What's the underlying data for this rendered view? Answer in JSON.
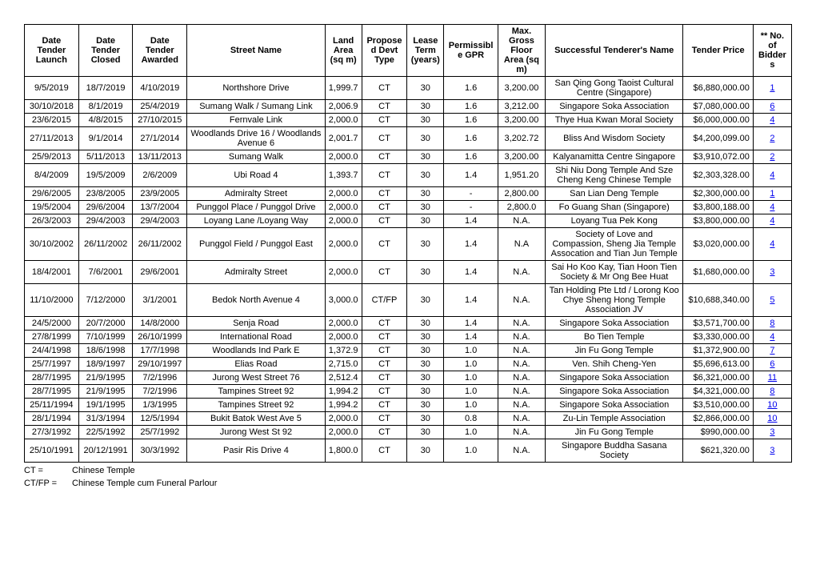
{
  "headers": {
    "launch": "Date Tender Launch",
    "closed": "Date Tender Closed",
    "awarded": "Date Tender Awarded",
    "street": "Street Name",
    "land": "Land Area (sq m)",
    "devt": "Proposed Devt Type",
    "lease": "Lease Term (years)",
    "gpr": "Permissible GPR",
    "gfa": "Max. Gross Floor Area (sq m)",
    "tenderer": "Successful Tenderer's Name",
    "price": "Tender Price",
    "bidders": "** No. of Bidders"
  },
  "rows": [
    {
      "launch": "9/5/2019",
      "closed": "18/7/2019",
      "awarded": "4/10/2019",
      "street": "Northshore Drive",
      "land": "1,999.7",
      "devt": "CT",
      "lease": "30",
      "gpr": "1.6",
      "gfa": "3,200.00",
      "tenderer": "San Qing Gong Taoist Cultural Centre (Singapore)",
      "price": "$6,880,000.00",
      "bidders": "1"
    },
    {
      "launch": "30/10/2018",
      "closed": "8/1/2019",
      "awarded": "25/4/2019",
      "street": "Sumang Walk / Sumang Link",
      "land": "2,006.9",
      "devt": "CT",
      "lease": "30",
      "gpr": "1.6",
      "gfa": "3,212.00",
      "tenderer": "Singapore Soka Association",
      "price": "$7,080,000.00",
      "bidders": "6"
    },
    {
      "launch": "23/6/2015",
      "closed": "4/8/2015",
      "awarded": "27/10/2015",
      "street": "Fernvale Link",
      "land": "2,000.0",
      "devt": "CT",
      "lease": "30",
      "gpr": "1.6",
      "gfa": "3,200.00",
      "tenderer": "Thye Hua Kwan Moral Society",
      "price": "$6,000,000.00",
      "bidders": "4"
    },
    {
      "launch": "27/11/2013",
      "closed": "9/1/2014",
      "awarded": "27/1/2014",
      "street": "Woodlands Drive 16 / Woodlands Avenue 6",
      "land": "2,001.7",
      "devt": "CT",
      "lease": "30",
      "gpr": "1.6",
      "gfa": "3,202.72",
      "tenderer": "Bliss And Wisdom Society",
      "price": "$4,200,099.00",
      "bidders": "2"
    },
    {
      "launch": "25/9/2013",
      "closed": "5/11/2013",
      "awarded": "13/11/2013",
      "street": "Sumang Walk",
      "land": "2,000.0",
      "devt": "CT",
      "lease": "30",
      "gpr": "1.6",
      "gfa": "3,200.00",
      "tenderer": "Kalyanamitta Centre Singapore",
      "price": "$3,910,072.00",
      "bidders": "2"
    },
    {
      "launch": "8/4/2009",
      "closed": "19/5/2009",
      "awarded": "2/6/2009",
      "street": "Ubi Road 4",
      "land": "1,393.7",
      "devt": "CT",
      "lease": "30",
      "gpr": "1.4",
      "gfa": "1,951.20",
      "tenderer": "Shi Niu Dong Temple And Sze Cheng Keng Chinese Temple",
      "price": "$2,303,328.00",
      "bidders": "4"
    },
    {
      "launch": "29/6/2005",
      "closed": "23/8/2005",
      "awarded": "23/9/2005",
      "street": "Admiralty Street",
      "land": "2,000.0",
      "devt": "CT",
      "lease": "30",
      "gpr": "-",
      "gfa": "2,800.00",
      "tenderer": "San Lian Deng Temple",
      "price": "$2,300,000.00",
      "bidders": "1"
    },
    {
      "launch": "19/5/2004",
      "closed": "29/6/2004",
      "awarded": "13/7/2004",
      "street": "Punggol Place / Punggol Drive",
      "land": "2,000.0",
      "devt": "CT",
      "lease": "30",
      "gpr": "-",
      "gfa": "2,800.0",
      "tenderer": "Fo Guang Shan (Singapore)",
      "price": "$3,800,188.00",
      "bidders": "4"
    },
    {
      "launch": "26/3/2003",
      "closed": "29/4/2003",
      "awarded": "29/4/2003",
      "street": "Loyang Lane /Loyang Way",
      "land": "2,000.0",
      "devt": "CT",
      "lease": "30",
      "gpr": "1.4",
      "gfa": "N.A.",
      "tenderer": "Loyang Tua Pek Kong",
      "price": "$3,800,000.00",
      "bidders": "4"
    },
    {
      "launch": "30/10/2002",
      "closed": "26/11/2002",
      "awarded": "26/11/2002",
      "street": "Punggol Field / Punggol East",
      "land": "2,000.0",
      "devt": "CT",
      "lease": "30",
      "gpr": "1.4",
      "gfa": "N.A",
      "tenderer": "Society of Love and Compassion, Sheng Jia Temple Assocation and Tian Jun Temple",
      "price": "$3,020,000.00",
      "bidders": "4"
    },
    {
      "launch": "18/4/2001",
      "closed": "7/6/2001",
      "awarded": "29/6/2001",
      "street": "Admiralty Street",
      "land": "2,000.0",
      "devt": "CT",
      "lease": "30",
      "gpr": "1.4",
      "gfa": "N.A.",
      "tenderer": "Sai Ho Koo Kay, Tian Hoon Tien Society & Mr Ong Bee Huat",
      "price": "$1,680,000.00",
      "bidders": "3"
    },
    {
      "launch": "11/10/2000",
      "closed": "7/12/2000",
      "awarded": "3/1/2001",
      "street": "Bedok North Avenue 4",
      "land": "3,000.0",
      "devt": "CT/FP",
      "lease": "30",
      "gpr": "1.4",
      "gfa": "N.A.",
      "tenderer": "Tan Holding Pte Ltd / Lorong Koo Chye Sheng Hong Temple Association JV",
      "price": "$10,688,340.00",
      "bidders": "5"
    },
    {
      "launch": "24/5/2000",
      "closed": "20/7/2000",
      "awarded": "14/8/2000",
      "street": "Senja Road",
      "land": "2,000.0",
      "devt": "CT",
      "lease": "30",
      "gpr": "1.4",
      "gfa": "N.A.",
      "tenderer": "Singapore Soka Association",
      "price": "$3,571,700.00",
      "bidders": "8"
    },
    {
      "launch": "27/8/1999",
      "closed": "7/10/1999",
      "awarded": "26/10/1999",
      "street": "International Road",
      "land": "2,000.0",
      "devt": "CT",
      "lease": "30",
      "gpr": "1.4",
      "gfa": "N.A.",
      "tenderer": "Bo Tien Temple",
      "price": "$3,330,000.00",
      "bidders": "4"
    },
    {
      "launch": "24/4/1998",
      "closed": "18/6/1998",
      "awarded": "17/7/1998",
      "street": "Woodlands Ind Park E",
      "land": "1,372.9",
      "devt": "CT",
      "lease": "30",
      "gpr": "1.0",
      "gfa": "N.A.",
      "tenderer": "Jin Fu Gong Temple",
      "price": "$1,372,900.00",
      "bidders": "7"
    },
    {
      "launch": "25/7/1997",
      "closed": "18/9/1997",
      "awarded": "29/10/1997",
      "street": "Elias Road",
      "land": "2,715.0",
      "devt": "CT",
      "lease": "30",
      "gpr": "1.0",
      "gfa": "N.A.",
      "tenderer": "Ven. Shih Cheng-Yen",
      "price": "$5,696,613.00",
      "bidders": "6"
    },
    {
      "launch": "28/7/1995",
      "closed": "21/9/1995",
      "awarded": "7/2/1996",
      "street": "Jurong West Street 76",
      "land": "2,512.4",
      "devt": "CT",
      "lease": "30",
      "gpr": "1.0",
      "gfa": "N.A.",
      "tenderer": "Singapore Soka Association",
      "price": "$6,321,000.00",
      "bidders": "11"
    },
    {
      "launch": "28/7/1995",
      "closed": "21/9/1995",
      "awarded": "7/2/1996",
      "street": "Tampines Street 92",
      "land": "1,994.2",
      "devt": "CT",
      "lease": "30",
      "gpr": "1.0",
      "gfa": "N.A.",
      "tenderer": "Singapore Soka Association",
      "price": "$4,321,000.00",
      "bidders": "8"
    },
    {
      "launch": "25/11/1994",
      "closed": "19/1/1995",
      "awarded": "1/3/1995",
      "street": "Tampines Street 92",
      "land": "1,994.2",
      "devt": "CT",
      "lease": "30",
      "gpr": "1.0",
      "gfa": "N.A.",
      "tenderer": "Singapore Soka Association",
      "price": "$3,510,000.00",
      "bidders": "10"
    },
    {
      "launch": "28/1/1994",
      "closed": "31/3/1994",
      "awarded": "12/5/1994",
      "street": "Bukit Batok West Ave 5",
      "land": "2,000.0",
      "devt": "CT",
      "lease": "30",
      "gpr": "0.8",
      "gfa": "N.A.",
      "tenderer": "Zu-Lin Temple Association",
      "price": "$2,866,000.00",
      "bidders": "10"
    },
    {
      "launch": "27/3/1992",
      "closed": "22/5/1992",
      "awarded": "25/7/1992",
      "street": "Jurong West St 92",
      "land": "2,000.0",
      "devt": "CT",
      "lease": "30",
      "gpr": "1.0",
      "gfa": "N.A.",
      "tenderer": "Jin Fu Gong Temple",
      "price": "$990,000.00",
      "bidders": "3"
    },
    {
      "launch": "25/10/1991",
      "closed": "20/12/1991",
      "awarded": "30/3/1992",
      "street": "Pasir Ris Drive 4",
      "land": "1,800.0",
      "devt": "CT",
      "lease": "30",
      "gpr": "1.0",
      "gfa": "N.A.",
      "tenderer": "Singapore Buddha Sasana Society",
      "price": "$621,320.00",
      "bidders": "3"
    }
  ],
  "legend": [
    {
      "key": "CT =",
      "val": "Chinese Temple"
    },
    {
      "key": "CT/FP =",
      "val": "Chinese Temple cum Funeral Parlour"
    }
  ]
}
